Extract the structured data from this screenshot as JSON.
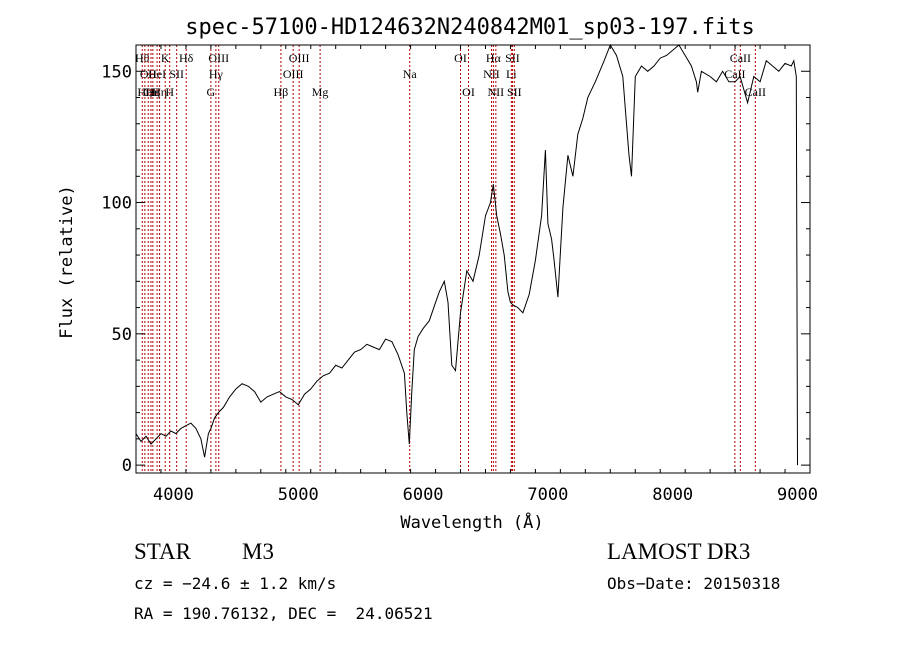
{
  "chart_data": {
    "type": "line",
    "title": "spec-57100-HD124632N240842M01_sp03-197.fits",
    "xlabel": "Wavelength (Å)",
    "ylabel": "Flux (relative)",
    "xlim": [
      3700,
      9100
    ],
    "ylim": [
      -3,
      160
    ],
    "xticks": [
      4000,
      5000,
      6000,
      7000,
      8000,
      9000
    ],
    "xtick_labels": [
      "4000",
      "5000",
      "6000",
      "7000",
      "8000",
      "9000"
    ],
    "yticks": [
      0,
      50,
      100,
      150
    ],
    "ytick_labels": [
      "0",
      "50",
      "100",
      "150"
    ],
    "grid": false,
    "series": [
      {
        "name": "flux",
        "x": [
          3700,
          3740,
          3780,
          3820,
          3860,
          3900,
          3940,
          3980,
          4020,
          4060,
          4100,
          4140,
          4180,
          4220,
          4250,
          4280,
          4300,
          4330,
          4360,
          4400,
          4450,
          4500,
          4550,
          4600,
          4650,
          4700,
          4750,
          4800,
          4850,
          4900,
          4950,
          5000,
          5050,
          5100,
          5150,
          5200,
          5250,
          5300,
          5350,
          5400,
          5450,
          5500,
          5550,
          5600,
          5650,
          5700,
          5750,
          5800,
          5850,
          5870,
          5890,
          5910,
          5930,
          5960,
          6000,
          6050,
          6100,
          6130,
          6170,
          6200,
          6230,
          6260,
          6300,
          6350,
          6400,
          6450,
          6500,
          6540,
          6563,
          6590,
          6620,
          6650,
          6680,
          6700,
          6720,
          6760,
          6800,
          6850,
          6900,
          6950,
          6980,
          7000,
          7030,
          7050,
          7080,
          7120,
          7160,
          7200,
          7240,
          7280,
          7320,
          7380,
          7450,
          7500,
          7550,
          7600,
          7630,
          7650,
          7670,
          7700,
          7750,
          7800,
          7850,
          7900,
          7950,
          8000,
          8050,
          8100,
          8150,
          8190,
          8200,
          8230,
          8300,
          8350,
          8400,
          8450,
          8500,
          8540,
          8600,
          8650,
          8700,
          8750,
          8800,
          8850,
          8900,
          8950,
          8970,
          8990,
          9000
        ],
        "y": [
          12,
          9,
          11,
          8,
          10,
          12,
          11,
          13,
          12,
          14,
          15,
          16,
          14,
          10,
          3,
          12,
          14,
          18,
          20,
          22,
          26,
          29,
          31,
          30,
          28,
          24,
          26,
          27,
          28,
          26,
          25,
          23,
          27,
          29,
          32,
          34,
          35,
          38,
          37,
          40,
          43,
          44,
          46,
          45,
          44,
          48,
          47,
          42,
          35,
          20,
          8,
          28,
          44,
          49,
          52,
          55,
          62,
          66,
          70,
          62,
          38,
          36,
          58,
          74,
          70,
          80,
          95,
          100,
          107,
          95,
          88,
          80,
          66,
          62,
          61,
          60,
          58,
          65,
          78,
          95,
          120,
          92,
          86,
          78,
          64,
          98,
          118,
          110,
          126,
          132,
          140,
          146,
          154,
          160,
          156,
          148,
          130,
          118,
          110,
          148,
          152,
          150,
          152,
          155,
          156,
          158,
          160,
          156,
          152,
          146,
          142,
          150,
          148,
          146,
          150,
          146,
          146,
          148,
          138,
          148,
          146,
          154,
          152,
          150,
          153,
          152,
          154,
          148,
          0
        ]
      }
    ],
    "lines": [
      {
        "wl": 3750,
        "label": "Hθ",
        "row": 0
      },
      {
        "wl": 3771,
        "label": "Hη",
        "row": 2
      },
      {
        "wl": 3798,
        "label": "OII",
        "row": 1
      },
      {
        "wl": 3820,
        "label": "CII",
        "row": 2
      },
      {
        "wl": 3835,
        "label": "Hη",
        "row": 2
      },
      {
        "wl": 3869,
        "label": "HeI",
        "row": 1
      },
      {
        "wl": 3889,
        "label": "Hη",
        "row": 2
      },
      {
        "wl": 3934,
        "label": "K",
        "row": 0
      },
      {
        "wl": 3970,
        "label": "H",
        "row": 2
      },
      {
        "wl": 4026,
        "label": "SII",
        "row": 1
      },
      {
        "wl": 4102,
        "label": "Hδ",
        "row": 0
      },
      {
        "wl": 4300,
        "label": "G",
        "row": 2
      },
      {
        "wl": 4340,
        "label": "Hγ",
        "row": 1
      },
      {
        "wl": 4363,
        "label": "OIII",
        "row": 0
      },
      {
        "wl": 4861,
        "label": "Hβ",
        "row": 2
      },
      {
        "wl": 4959,
        "label": "OIII",
        "row": 1
      },
      {
        "wl": 5007,
        "label": "OIII",
        "row": 0
      },
      {
        "wl": 5175,
        "label": "Mg",
        "row": 2
      },
      {
        "wl": 5893,
        "label": "Na",
        "row": 1
      },
      {
        "wl": 6300,
        "label": "OI",
        "row": 0
      },
      {
        "wl": 6364,
        "label": "OI",
        "row": 2
      },
      {
        "wl": 6548,
        "label": "NII",
        "row": 1
      },
      {
        "wl": 6563,
        "label": "Hα",
        "row": 0
      },
      {
        "wl": 6583,
        "label": "NII",
        "row": 2
      },
      {
        "wl": 6707,
        "label": "Li",
        "row": 1
      },
      {
        "wl": 6716,
        "label": "SII",
        "row": 0
      },
      {
        "wl": 6731,
        "label": "SII",
        "row": 2
      },
      {
        "wl": 8498,
        "label": "CaII",
        "row": 1
      },
      {
        "wl": 8542,
        "label": "CaII",
        "row": 0
      },
      {
        "wl": 8662,
        "label": "CaII",
        "row": 2
      }
    ]
  },
  "info": {
    "class_label": "STAR",
    "subclass": "M3",
    "survey": "LAMOST DR3",
    "cz": "cz = −24.6 ± 1.2 km/s",
    "obs_date": "Obs−Date: 20150318",
    "coords": "RA = 190.76132, DEC =  24.06521"
  }
}
